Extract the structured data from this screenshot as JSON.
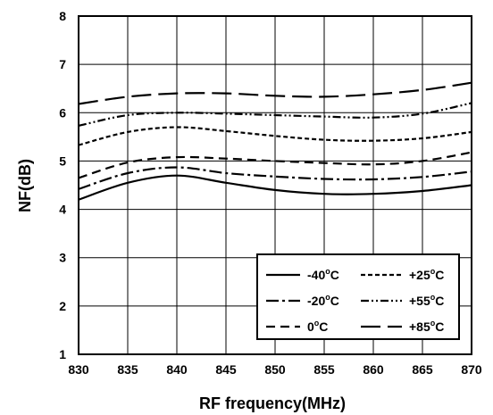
{
  "chart_data": {
    "type": "line",
    "xlabel": "RF frequency(MHz)",
    "ylabel": "NF(dB)",
    "xlim": [
      830,
      870
    ],
    "ylim": [
      1,
      8
    ],
    "xticks": [
      830,
      835,
      840,
      845,
      850,
      855,
      860,
      865,
      870
    ],
    "yticks": [
      1,
      2,
      3,
      4,
      5,
      6,
      7,
      8
    ],
    "grid": true,
    "legend_position": "bottom-right",
    "x": [
      830,
      835,
      840,
      845,
      850,
      855,
      860,
      865,
      870
    ],
    "series": [
      {
        "name": "-40°C",
        "label": "-40",
        "unit": "°C",
        "dash": "solid",
        "values": [
          4.2,
          4.55,
          4.7,
          4.55,
          4.4,
          4.32,
          4.32,
          4.38,
          4.5
        ]
      },
      {
        "name": "-20°C",
        "label": "-20",
        "unit": "°C",
        "dash": "dashdot",
        "values": [
          4.42,
          4.75,
          4.87,
          4.75,
          4.68,
          4.63,
          4.62,
          4.67,
          4.78
        ]
      },
      {
        "name": "0°C",
        "label": "0",
        "unit": "°C",
        "dash": "dash",
        "values": [
          4.65,
          4.97,
          5.08,
          5.05,
          5.0,
          4.96,
          4.93,
          5.0,
          5.18
        ]
      },
      {
        "name": "+25°C",
        "label": "+25",
        "unit": "°C",
        "dash": "shortdash",
        "values": [
          5.33,
          5.6,
          5.7,
          5.62,
          5.52,
          5.44,
          5.42,
          5.47,
          5.6
        ]
      },
      {
        "name": "+55°C",
        "label": "+55",
        "unit": "°C",
        "dash": "dashdotdot",
        "values": [
          5.73,
          5.95,
          6.0,
          5.98,
          5.95,
          5.92,
          5.9,
          5.98,
          6.2
        ]
      },
      {
        "name": "+85°C",
        "label": "+85",
        "unit": "°C",
        "dash": "longdash",
        "values": [
          6.18,
          6.33,
          6.4,
          6.4,
          6.35,
          6.33,
          6.38,
          6.47,
          6.62
        ]
      }
    ]
  }
}
